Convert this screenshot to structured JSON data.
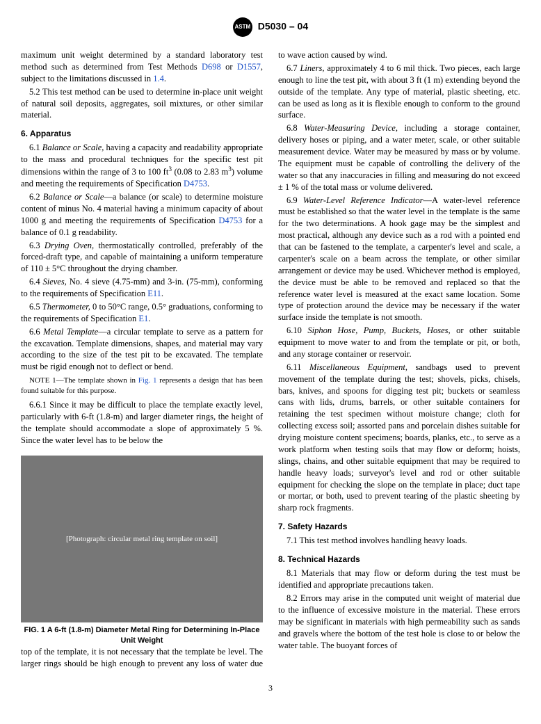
{
  "header": {
    "logo_text": "ASTM",
    "standard": "D5030 – 04"
  },
  "col1": {
    "p1": {
      "text_a": "maximum unit weight determined by a standard laboratory test method such as determined from Test Methods ",
      "link1": "D698",
      "mid": " or ",
      "link2": "D1557",
      "text_b": ", subject to the limitations discussed in ",
      "link3": "1.4",
      "end": "."
    },
    "p2": "5.2 This test method can be used to determine in-place unit weight of natural soil deposits, aggregates, soil mixtures, or other similar material.",
    "s6_title": "6. Apparatus",
    "p6_1": {
      "a": "6.1 ",
      "it": "Balance or Scale,",
      "b": " having a capacity and readability appropriate to the mass and procedural techniques for the specific test pit dimensions within the range of 3 to 100 ft",
      "sup1": "3",
      "c": " (0.08 to 2.83 m",
      "sup2": "3",
      "d": ") volume and meeting the requirements of Specification ",
      "link": "D4753",
      "e": "."
    },
    "p6_2": {
      "a": "6.2 ",
      "it": "Balance or Scale",
      "b": "—a balance (or scale) to determine moisture content of minus No. 4 material having a minimum capacity of about 1000 g and meeting the requirements of Specification ",
      "link": "D4753",
      "c": " for a balance of 0.1 g readability."
    },
    "p6_3": {
      "a": "6.3 ",
      "it": "Drying Oven,",
      "b": " thermostatically controlled, preferably of the forced-draft type, and capable of maintaining a uniform temperature of 110 ± 5°C throughout the drying chamber."
    },
    "p6_4": {
      "a": "6.4 ",
      "it": "Sieves,",
      "b": " No. 4 sieve (4.75-mm) and 3-in. (75-mm), conforming to the requirements of Specification ",
      "link": "E11",
      "c": "."
    },
    "p6_5": {
      "a": "6.5 ",
      "it": "Thermometer,",
      "b": " 0 to 50°C range, 0.5° graduations, conforming to the requirements of Specification ",
      "link": "E1",
      "c": "."
    },
    "p6_6": {
      "a": "6.6 ",
      "it": "Metal Template",
      "b": "—a circular template to serve as a pattern for the excavation. Template dimensions, shapes, and material may vary according to the size of the test pit to be excavated. The template must be rigid enough not to deflect or bend."
    },
    "note1": {
      "a": "N",
      "sc": "OTE",
      "b": " 1—The template shown in ",
      "link": "Fig. 1",
      "c": " represents a design that has been found suitable for this purpose."
    },
    "p6_6_1": "6.6.1 Since it may be difficult to place the template exactly level, particularly with 6-ft (1.8-m) and larger diameter rings, the height of the template should accommodate a slope of approximately 5 %. Since the water level has to be below the",
    "fig_placeholder": "[Photograph: circular metal ring template on soil]",
    "fig_caption": "FIG. 1  A 6-ft (1.8-m) Diameter Metal Ring for Determining In-Place Unit Weight"
  },
  "col2": {
    "p_cont": "top of the template, it is not necessary that the template be level. The larger rings should be high enough to prevent any loss of water due to wave action caused by wind.",
    "p6_7": {
      "a": "6.7 ",
      "it": "Liners,",
      "b": " approximately 4 to 6 mil thick. Two pieces, each large enough to line the test pit, with about 3 ft (1 m) extending beyond the outside of the template. Any type of material, plastic sheeting, etc. can be used as long as it is flexible enough to conform to the ground surface."
    },
    "p6_8": {
      "a": "6.8 ",
      "it": "Water-Measuring Device,",
      "b": " including a storage container, delivery hoses or piping, and a water meter, scale, or other suitable measurement device. Water may be measured by mass or by volume. The equipment must be capable of controlling the delivery of the water so that any inaccuracies in filling and measuring do not exceed ± 1 % of the total mass or volume delivered."
    },
    "p6_9": {
      "a": "6.9 ",
      "it": "Water-Level Reference Indicator",
      "b": "—A water-level reference must be established so that the water level in the template is the same for the two determinations. A hook gage may be the simplest and most practical, although any device such as a rod with a pointed end that can be fastened to the template, a carpenter's level and scale, a carpenter's scale on a beam across the template, or other similar arrangement or device may be used. Whichever method is employed, the device must be able to be removed and replaced so that the reference water level is measured at the exact same location. Some type of protection around the device may be necessary if the water surface inside the template is not smooth."
    },
    "p6_10": {
      "a": "6.10 ",
      "it": "Siphon Hose, Pump, Buckets, Hoses,",
      "b": " or other suitable equipment to move water to and from the template or pit, or both, and any storage container or reservoir."
    },
    "p6_11": {
      "a": "6.11 ",
      "it": "Miscellaneous Equipment,",
      "b": " sandbags used to prevent movement of the template during the test; shovels, picks, chisels, bars, knives, and spoons for digging test pit; buckets or seamless cans with lids, drums, barrels, or other suitable containers for retaining the test specimen without moisture change; cloth for collecting excess soil; assorted pans and porcelain dishes suitable for drying moisture content specimens; boards, planks, etc., to serve as a work platform when testing soils that may flow or deform; hoists, slings, chains, and other suitable equipment that may be required to handle heavy loads; surveyor's level and rod or other suitable equipment for checking the slope on the template in place; duct tape or mortar, or both, used to prevent tearing of the plastic sheeting by sharp rock fragments."
    },
    "s7_title": "7. Safety Hazards",
    "p7_1": "7.1 This test method involves handling heavy loads.",
    "s8_title": "8. Technical Hazards",
    "p8_1": "8.1 Materials that may flow or deform during the test must be identified and appropriate precautions taken.",
    "p8_2": "8.2 Errors may arise in the computed unit weight of material due to the influence of excessive moisture in the material. These errors may be significant in materials with high permeability such as sands and gravels where the bottom of the test hole is close to or below the water table. The buoyant forces of"
  },
  "page_num": "3"
}
